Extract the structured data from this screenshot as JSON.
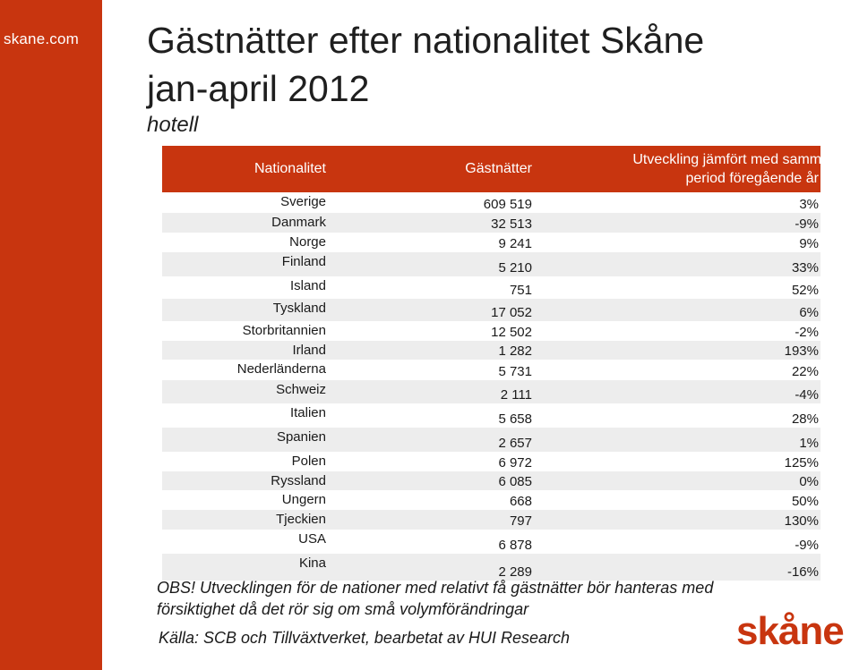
{
  "sidebar": {
    "brand_link": "skane.com"
  },
  "title": {
    "line1": "Gästnätter efter nationalitet Skåne",
    "line2": "jan-april 2012"
  },
  "subtitle": "hotell",
  "table": {
    "headers": {
      "nationality": "Nationalitet",
      "nights": "Gästnätter",
      "change_line1": "Utveckling jämfört med samma",
      "change_line2": "period föregående år"
    },
    "rows": [
      {
        "nationality": "Sverige",
        "nights": "609 519",
        "change": "3%"
      },
      {
        "nationality": "Danmark",
        "nights": "32 513",
        "change": "-9%"
      },
      {
        "nationality": "Norge",
        "nights": "9 241",
        "change": "9%"
      },
      {
        "nationality": "Finland",
        "nights": "5 210",
        "change": "33%"
      },
      {
        "nationality": "Island",
        "nights": "751",
        "change": "52%"
      },
      {
        "nationality": "Tyskland",
        "nights": "17 052",
        "change": "6%"
      },
      {
        "nationality": "Storbritannien",
        "nights": "12 502",
        "change": "-2%"
      },
      {
        "nationality": "Irland",
        "nights": "1 282",
        "change": "193%"
      },
      {
        "nationality": "Nederländerna",
        "nights": "5 731",
        "change": "22%"
      },
      {
        "nationality": "Schweiz",
        "nights": "2 111",
        "change": "-4%"
      },
      {
        "nationality": "Italien",
        "nights": "5 658",
        "change": "28%"
      },
      {
        "nationality": "Spanien",
        "nights": "2 657",
        "change": "1%"
      },
      {
        "nationality": "Polen",
        "nights": "6 972",
        "change": "125%"
      },
      {
        "nationality": "Ryssland",
        "nights": "6 085",
        "change": "0%"
      },
      {
        "nationality": "Ungern",
        "nights": "668",
        "change": "50%"
      },
      {
        "nationality": "Tjeckien",
        "nights": "797",
        "change": "130%"
      },
      {
        "nationality": "USA",
        "nights": "6 878",
        "change": "-9%"
      },
      {
        "nationality": "Kina",
        "nights": "2 289",
        "change": "-16%"
      }
    ]
  },
  "note": {
    "line1": "OBS! Utvecklingen för de nationer med relativt få gästnätter bör hanteras med",
    "line2": "försiktighet då det rör sig om små volymförändringar"
  },
  "source": "Källa: SCB och Tillväxtverket, bearbetat av HUI Research",
  "logo": {
    "text": "skåne",
    "icon": "skane-logo",
    "color": "#c8350f"
  },
  "colors": {
    "accent": "#c8350f",
    "row_alt": "#ededed"
  }
}
